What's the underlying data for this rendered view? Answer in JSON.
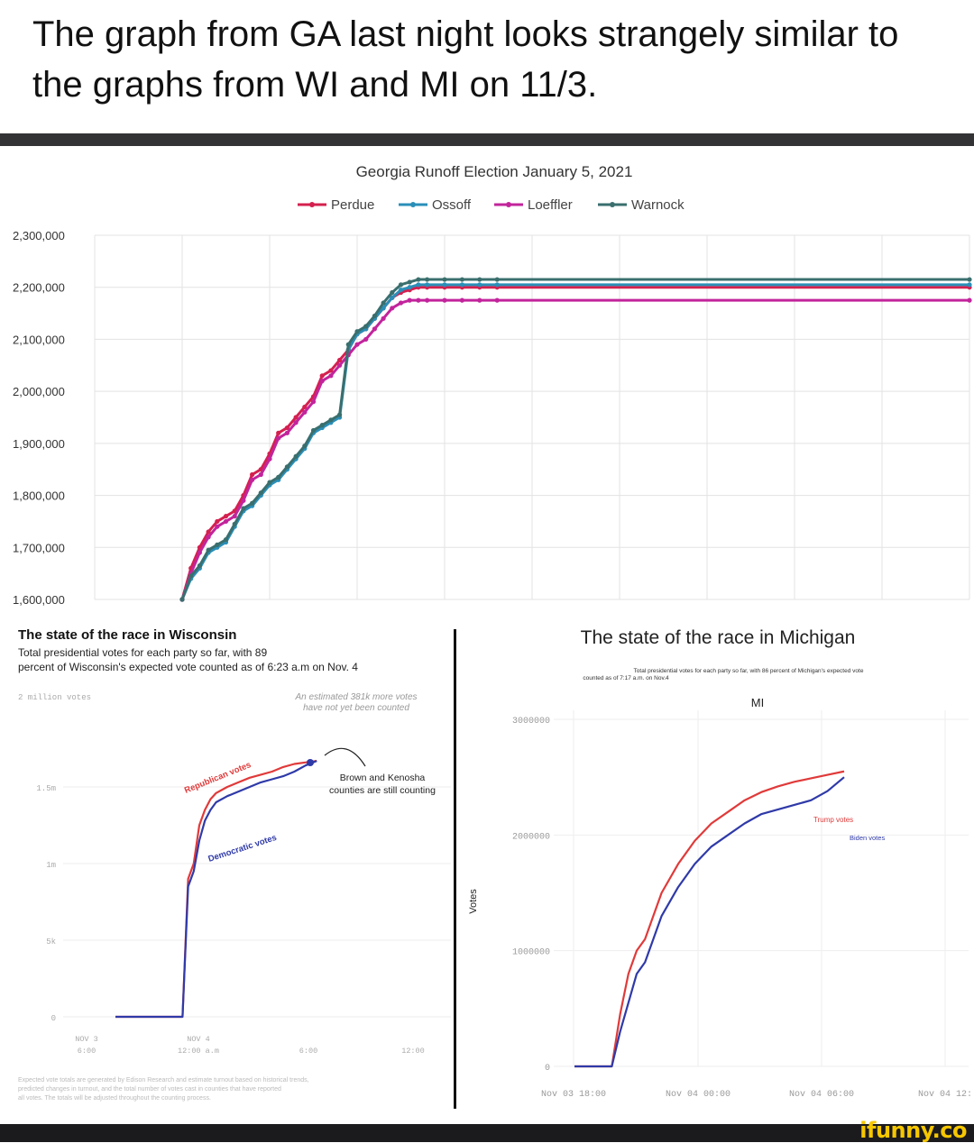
{
  "caption": "The graph from GA last night looks strangely similar to the graphs from WI and MI on 11/3.",
  "watermark": "ifunny.co",
  "colors": {
    "perdue": "#d4204f",
    "ossoff": "#2a8fb8",
    "loeffler": "#c2249c",
    "warnock": "#3a6f6e",
    "wi_rep": "#e03a3a",
    "wi_dem": "#2f3aa8",
    "mi_trump": "#e03a3a",
    "mi_biden": "#2f3aa8",
    "grid": "#e3e3e3"
  },
  "chart_data": [
    {
      "type": "line",
      "title": "Georgia Runoff Election January 5, 2021",
      "legend_position": "top",
      "grid": true,
      "ylim": [
        1600000,
        2300000
      ],
      "yticks": [
        "2,300,000",
        "2,200,000",
        "2,100,000",
        "2,000,000",
        "1,900,000",
        "1,800,000",
        "1,700,000",
        "1,600,000"
      ],
      "xlim": [
        0,
        100
      ],
      "series": [
        {
          "name": "Perdue",
          "color": "#d4204f",
          "x": [
            10,
            11,
            12,
            13,
            14,
            15,
            16,
            17,
            18,
            19,
            20,
            21,
            22,
            23,
            24,
            25,
            26,
            27,
            28,
            29,
            30,
            31,
            32,
            33,
            34,
            35,
            36,
            37,
            38,
            40,
            42,
            44,
            46,
            50,
            60,
            70,
            80,
            90,
            100
          ],
          "y": [
            1600000,
            1660000,
            1700000,
            1730000,
            1750000,
            1760000,
            1770000,
            1800000,
            1840000,
            1850000,
            1880000,
            1920000,
            1930000,
            1950000,
            1970000,
            1990000,
            2030000,
            2040000,
            2060000,
            2080000,
            2110000,
            2120000,
            2140000,
            2160000,
            2180000,
            2190000,
            2195000,
            2200000,
            2200000,
            2200000,
            2200000,
            2200000,
            2200000,
            2200000,
            2200000,
            2200000,
            2200000,
            2200000,
            2200000
          ]
        },
        {
          "name": "Ossoff",
          "color": "#2a8fb8",
          "x": [
            10,
            11,
            12,
            13,
            14,
            15,
            16,
            17,
            18,
            19,
            20,
            21,
            22,
            23,
            24,
            25,
            26,
            27,
            28,
            29,
            30,
            31,
            32,
            33,
            34,
            35,
            36,
            37,
            38,
            40,
            42,
            44,
            46,
            50,
            60,
            70,
            80,
            90,
            100
          ],
          "y": [
            1600000,
            1640000,
            1660000,
            1690000,
            1700000,
            1710000,
            1740000,
            1770000,
            1780000,
            1800000,
            1820000,
            1830000,
            1850000,
            1870000,
            1890000,
            1920000,
            1930000,
            1940000,
            1950000,
            2080000,
            2110000,
            2120000,
            2140000,
            2160000,
            2180000,
            2195000,
            2200000,
            2205000,
            2205000,
            2205000,
            2205000,
            2205000,
            2205000,
            2205000,
            2205000,
            2205000,
            2205000,
            2205000,
            2205000
          ]
        },
        {
          "name": "Loeffler",
          "color": "#c2249c",
          "x": [
            10,
            11,
            12,
            13,
            14,
            15,
            16,
            17,
            18,
            19,
            20,
            21,
            22,
            23,
            24,
            25,
            26,
            27,
            28,
            29,
            30,
            31,
            32,
            33,
            34,
            35,
            36,
            37,
            38,
            40,
            42,
            44,
            46,
            50,
            60,
            70,
            80,
            90,
            100
          ],
          "y": [
            1600000,
            1650000,
            1690000,
            1720000,
            1740000,
            1750000,
            1760000,
            1790000,
            1830000,
            1840000,
            1870000,
            1910000,
            1920000,
            1940000,
            1960000,
            1980000,
            2020000,
            2030000,
            2050000,
            2070000,
            2090000,
            2100000,
            2120000,
            2140000,
            2160000,
            2170000,
            2175000,
            2175000,
            2175000,
            2175000,
            2175000,
            2175000,
            2175000,
            2175000,
            2175000,
            2175000,
            2175000,
            2175000,
            2175000
          ]
        },
        {
          "name": "Warnock",
          "color": "#3a6f6e",
          "x": [
            10,
            11,
            12,
            13,
            14,
            15,
            16,
            17,
            18,
            19,
            20,
            21,
            22,
            23,
            24,
            25,
            26,
            27,
            28,
            29,
            30,
            31,
            32,
            33,
            34,
            35,
            36,
            37,
            38,
            40,
            42,
            44,
            46,
            50,
            60,
            70,
            80,
            90,
            100
          ],
          "y": [
            1600000,
            1645000,
            1665000,
            1695000,
            1705000,
            1715000,
            1745000,
            1775000,
            1785000,
            1805000,
            1825000,
            1835000,
            1855000,
            1875000,
            1895000,
            1925000,
            1935000,
            1945000,
            1955000,
            2090000,
            2115000,
            2125000,
            2145000,
            2170000,
            2190000,
            2205000,
            2210000,
            2215000,
            2215000,
            2215000,
            2215000,
            2215000,
            2215000,
            2215000,
            2215000,
            2215000,
            2215000,
            2215000,
            2215000
          ]
        }
      ]
    },
    {
      "type": "line",
      "title": "The state of the race in Wisconsin",
      "subtitle": "Total presidential votes for each party so far, with 89 percent of Wisconsin's expected vote counted as of 6:23 a.m on Nov. 4",
      "ylabel": "2 million votes",
      "yticks": [
        "1.5m",
        "1m",
        "5k",
        "0"
      ],
      "xticks": [
        {
          "l1": "NOV 3",
          "l2": "6:00"
        },
        {
          "l1": "NOV 4",
          "l2": "12:00 a.m"
        },
        {
          "l1": "",
          "l2": "6:00"
        },
        {
          "l1": "",
          "l2": "12:00"
        }
      ],
      "ylim": [
        0,
        2000000
      ],
      "xlim": [
        0,
        30
      ],
      "annotations": [
        "An estimated 381k more votes have not yet been counted",
        "Brown and Kenosha counties are still counting",
        "Republican votes",
        "Democratic votes"
      ],
      "footnote": "Expected vote totals are generated by Edison Research and estimate turnout based on historical trends, predicted changes in turnout, and the total number of votes cast in counties that have reported all votes. The totals will be adjusted throughout the counting process.",
      "series": [
        {
          "name": "Republican votes",
          "color": "#e03a3a",
          "x": [
            0,
            6,
            6.5,
            7,
            7.5,
            8,
            8.5,
            9,
            10,
            11,
            12,
            13,
            14,
            15,
            16,
            17,
            18
          ],
          "y": [
            0,
            0,
            900000,
            1000000,
            1250000,
            1350000,
            1420000,
            1460000,
            1500000,
            1530000,
            1560000,
            1580000,
            1600000,
            1630000,
            1650000,
            1660000,
            1670000
          ]
        },
        {
          "name": "Democratic votes",
          "color": "#2f3aa8",
          "x": [
            0,
            6,
            6.5,
            7,
            7.5,
            8,
            8.5,
            9,
            10,
            11,
            12,
            13,
            14,
            15,
            16,
            17,
            18
          ],
          "y": [
            0,
            0,
            850000,
            950000,
            1150000,
            1280000,
            1350000,
            1400000,
            1440000,
            1470000,
            1500000,
            1530000,
            1550000,
            1570000,
            1600000,
            1640000,
            1670000
          ]
        }
      ]
    },
    {
      "type": "line",
      "title": "The state of the race in Michigan",
      "subtitle": "Total presidential votes for each party so far, with 86 percent of Michigan's expected vote counted as of 7:17 a.m. on Nov.4",
      "chart_label": "MI",
      "ylabel": "Votes",
      "yticks": [
        "3000000",
        "2000000",
        "1000000",
        "0"
      ],
      "xticks": [
        "Nov 03 18:00",
        "Nov 04 00:00",
        "Nov 04 06:00",
        "Nov 04 12:"
      ],
      "ylim": [
        0,
        3000000
      ],
      "xlim": [
        0,
        100
      ],
      "annotations": [
        "Trump votes",
        "Biden votes"
      ],
      "series": [
        {
          "name": "Trump votes",
          "color": "#e03a3a",
          "x": [
            5,
            14,
            16,
            18,
            20,
            22,
            24,
            26,
            30,
            34,
            38,
            42,
            46,
            50,
            54,
            58,
            62,
            66,
            70
          ],
          "y": [
            0,
            0,
            450000,
            800000,
            1000000,
            1100000,
            1300000,
            1500000,
            1750000,
            1950000,
            2100000,
            2200000,
            2300000,
            2370000,
            2420000,
            2460000,
            2490000,
            2520000,
            2550000
          ]
        },
        {
          "name": "Biden votes",
          "color": "#2f3aa8",
          "x": [
            5,
            14,
            16,
            18,
            20,
            22,
            24,
            26,
            30,
            34,
            38,
            42,
            46,
            50,
            54,
            58,
            62,
            66,
            70
          ],
          "y": [
            0,
            0,
            300000,
            550000,
            800000,
            900000,
            1100000,
            1300000,
            1550000,
            1750000,
            1900000,
            2000000,
            2100000,
            2180000,
            2220000,
            2260000,
            2300000,
            2380000,
            2500000
          ]
        }
      ]
    }
  ]
}
